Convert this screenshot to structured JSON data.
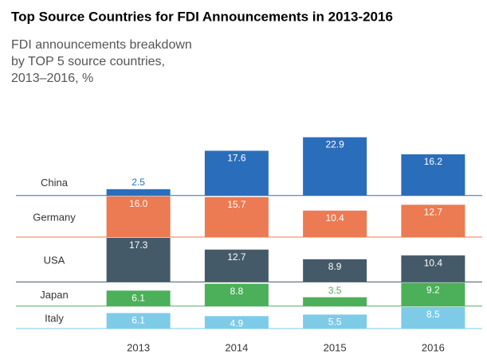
{
  "chart_data": {
    "type": "banded-bar",
    "title": "Top Source Countries for FDI Announcements in 2013-2016",
    "subtitle": [
      "FDI announcements breakdown",
      "by TOP 5 source countries,",
      "2013–2016, %"
    ],
    "categories": [
      "2013",
      "2014",
      "2015",
      "2016"
    ],
    "series": [
      {
        "name": "China",
        "color": "#2a6ebb",
        "values": [
          2.5,
          17.6,
          22.9,
          16.2
        ],
        "value_labels": [
          "2.5",
          "17.6",
          "22.9",
          "16.2"
        ]
      },
      {
        "name": "Germany",
        "color": "#ec7a52",
        "values": [
          16.0,
          15.7,
          10.4,
          12.7
        ],
        "value_labels": [
          "16.0",
          "15.7",
          "10.4",
          "12.7"
        ]
      },
      {
        "name": "USA",
        "color": "#455a69",
        "values": [
          17.3,
          12.7,
          8.9,
          10.4
        ],
        "value_labels": [
          "17.3",
          "12.7",
          "8.9",
          "10.4"
        ]
      },
      {
        "name": "Japan",
        "color": "#4caf5a",
        "values": [
          6.1,
          8.8,
          3.5,
          9.2
        ],
        "value_labels": [
          "6.1",
          "8.8",
          "3.5",
          "9.2"
        ]
      },
      {
        "name": "Italy",
        "color": "#7ecbe8",
        "values": [
          6.1,
          4.9,
          5.5,
          8.5
        ],
        "value_labels": [
          "6.1",
          "4.9",
          "5.5",
          "8.5"
        ]
      }
    ]
  }
}
